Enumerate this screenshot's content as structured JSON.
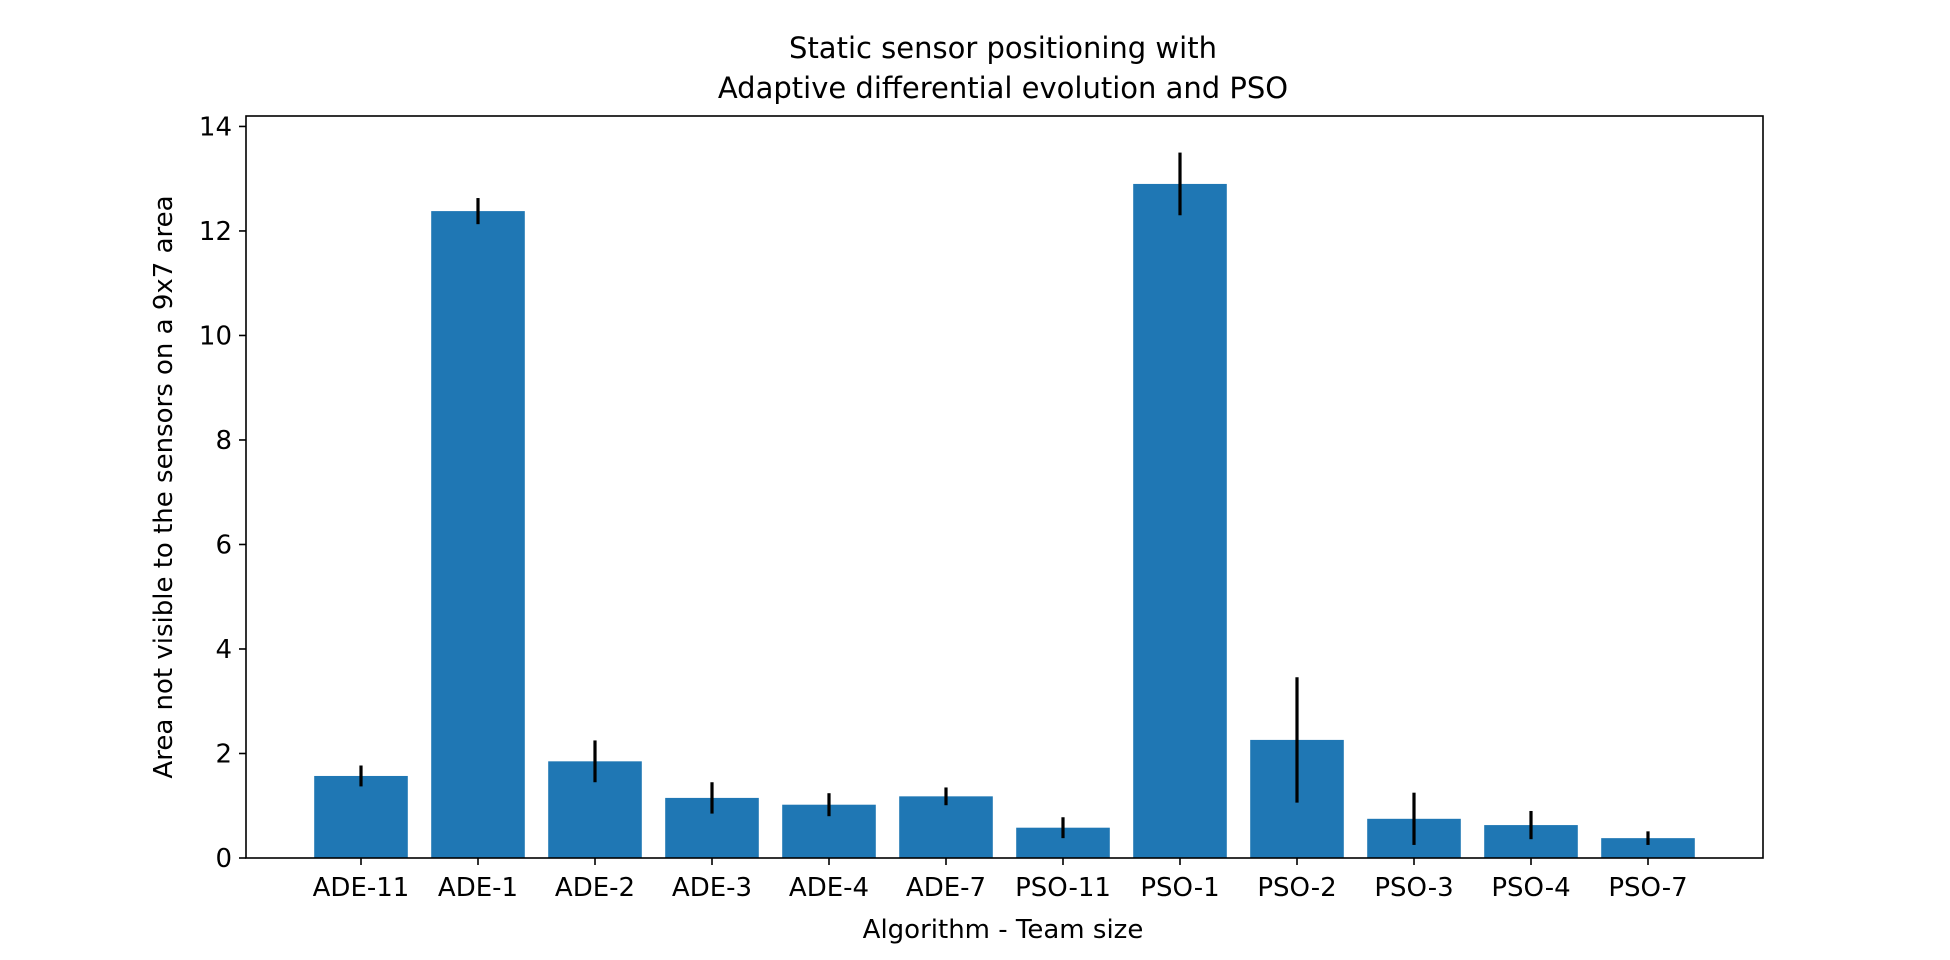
{
  "chart_data": {
    "type": "bar",
    "title": "Static sensor positioning with\nAdaptive differential evolution and PSO",
    "title_lines": [
      "Static sensor positioning with",
      "Adaptive differential evolution and PSO"
    ],
    "xlabel": "Algorithm - Team size",
    "ylabel": "Area not visible to the sensors on a 9x7 area",
    "categories": [
      "ADE-11",
      "ADE-1",
      "ADE-2",
      "ADE-3",
      "ADE-4",
      "ADE-7",
      "PSO-11",
      "PSO-1",
      "PSO-2",
      "PSO-3",
      "PSO-4",
      "PSO-7"
    ],
    "values": [
      1.57,
      12.38,
      1.85,
      1.15,
      1.02,
      1.18,
      0.58,
      12.9,
      2.26,
      0.75,
      0.63,
      0.38
    ],
    "errors": [
      0.2,
      0.25,
      0.4,
      0.3,
      0.22,
      0.17,
      0.2,
      0.6,
      1.2,
      0.5,
      0.27,
      0.13
    ],
    "ylim": [
      0,
      14.2
    ],
    "yticks": [
      0,
      2,
      4,
      6,
      8,
      10,
      12,
      14
    ],
    "bar_color": "#1f77b4",
    "error_color": "#000000",
    "grid": false
  }
}
